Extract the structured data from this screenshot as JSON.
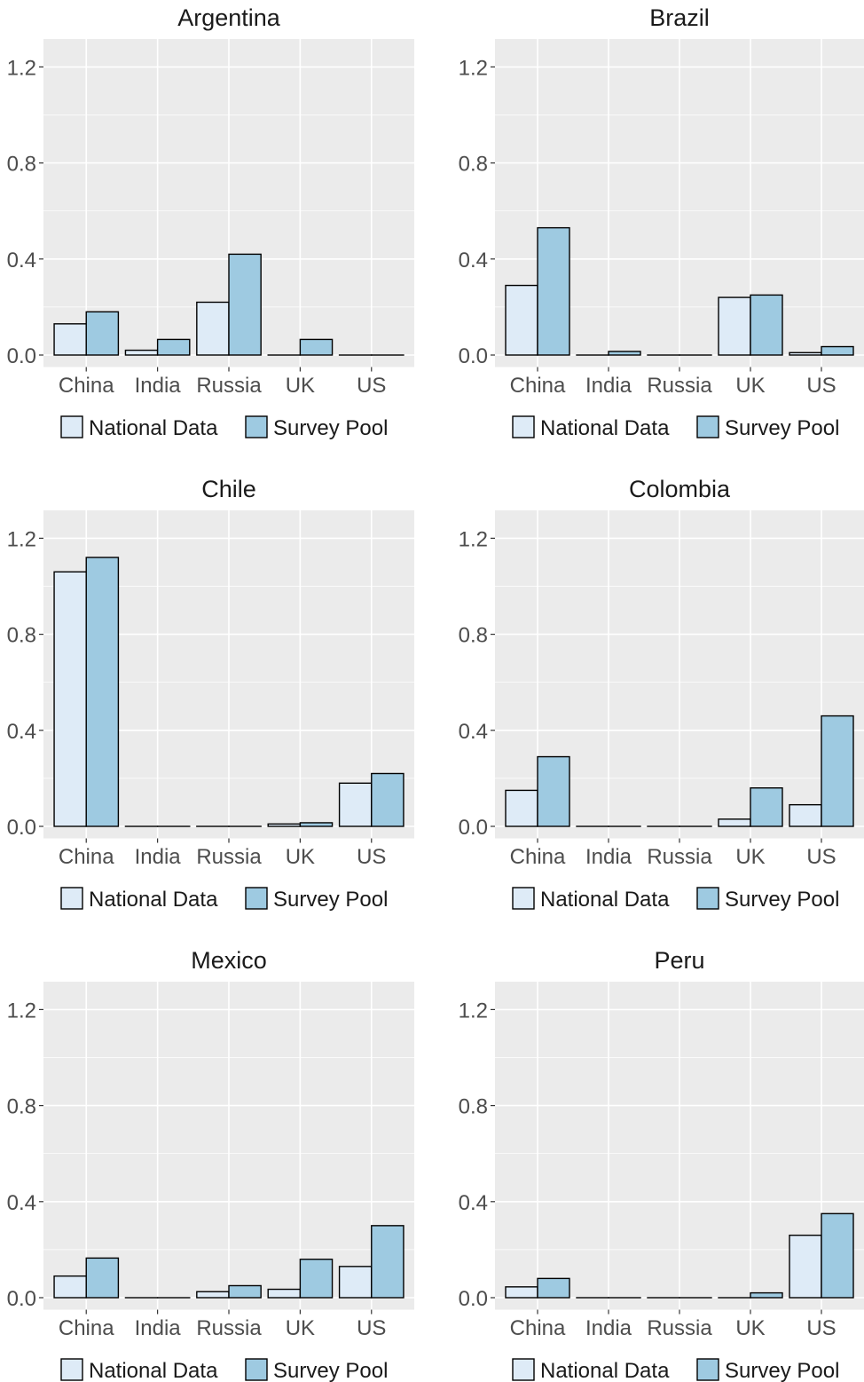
{
  "colors": {
    "panel_bg": "#EBEBEB",
    "grid": "#FFFFFF",
    "national": "#DEEBF7",
    "survey": "#9ECAE1",
    "bar_border": "#000000",
    "text": "#1A1A1A",
    "tick_text": "#4D4D4D"
  },
  "legend": [
    {
      "name": "National Data",
      "color": "#DEEBF7"
    },
    {
      "name": "Survey Pool",
      "color": "#9ECAE1"
    }
  ],
  "chart_data": [
    {
      "type": "bar",
      "title": "Argentina",
      "categories": [
        "China",
        "India",
        "Russia",
        "UK",
        "US"
      ],
      "series": [
        {
          "name": "National Data",
          "values": [
            0.13,
            0.02,
            0.22,
            0.0,
            0.0
          ]
        },
        {
          "name": "Survey Pool",
          "values": [
            0.18,
            0.065,
            0.42,
            0.065,
            0.0
          ]
        }
      ],
      "yticks": [
        "0.0",
        "0.4",
        "0.8",
        "1.2"
      ],
      "ylim": [
        0,
        1.3
      ],
      "grid": true,
      "legend_position": "bottom"
    },
    {
      "type": "bar",
      "title": "Brazil",
      "categories": [
        "China",
        "India",
        "Russia",
        "UK",
        "US"
      ],
      "series": [
        {
          "name": "National Data",
          "values": [
            0.29,
            0.0,
            0.0,
            0.24,
            0.01
          ]
        },
        {
          "name": "Survey Pool",
          "values": [
            0.53,
            0.015,
            0.0,
            0.25,
            0.035
          ]
        }
      ],
      "yticks": [
        "0.0",
        "0.4",
        "0.8",
        "1.2"
      ],
      "ylim": [
        0,
        1.3
      ],
      "grid": true,
      "legend_position": "bottom"
    },
    {
      "type": "bar",
      "title": "Chile",
      "categories": [
        "China",
        "India",
        "Russia",
        "UK",
        "US"
      ],
      "series": [
        {
          "name": "National Data",
          "values": [
            1.06,
            0.0,
            0.0,
            0.01,
            0.18
          ]
        },
        {
          "name": "Survey Pool",
          "values": [
            1.12,
            0.0,
            0.0,
            0.015,
            0.22
          ]
        }
      ],
      "yticks": [
        "0.0",
        "0.4",
        "0.8",
        "1.2"
      ],
      "ylim": [
        0,
        1.3
      ],
      "grid": true,
      "legend_position": "bottom"
    },
    {
      "type": "bar",
      "title": "Colombia",
      "categories": [
        "China",
        "India",
        "Russia",
        "UK",
        "US"
      ],
      "series": [
        {
          "name": "National Data",
          "values": [
            0.15,
            0.0,
            0.0,
            0.03,
            0.09
          ]
        },
        {
          "name": "Survey Pool",
          "values": [
            0.29,
            0.0,
            0.0,
            0.16,
            0.46
          ]
        }
      ],
      "yticks": [
        "0.0",
        "0.4",
        "0.8",
        "1.2"
      ],
      "ylim": [
        0,
        1.3
      ],
      "grid": true,
      "legend_position": "bottom"
    },
    {
      "type": "bar",
      "title": "Mexico",
      "categories": [
        "China",
        "India",
        "Russia",
        "UK",
        "US"
      ],
      "series": [
        {
          "name": "National Data",
          "values": [
            0.09,
            0.0,
            0.025,
            0.035,
            0.13
          ]
        },
        {
          "name": "Survey Pool",
          "values": [
            0.165,
            0.0,
            0.05,
            0.16,
            0.3
          ]
        }
      ],
      "yticks": [
        "0.0",
        "0.4",
        "0.8",
        "1.2"
      ],
      "ylim": [
        0,
        1.3
      ],
      "grid": true,
      "legend_position": "bottom"
    },
    {
      "type": "bar",
      "title": "Peru",
      "categories": [
        "China",
        "India",
        "Russia",
        "UK",
        "US"
      ],
      "series": [
        {
          "name": "National Data",
          "values": [
            0.045,
            0.0,
            0.0,
            0.0,
            0.26
          ]
        },
        {
          "name": "Survey Pool",
          "values": [
            0.08,
            0.0,
            0.0,
            0.02,
            0.35
          ]
        }
      ],
      "yticks": [
        "0.0",
        "0.4",
        "0.8",
        "1.2"
      ],
      "ylim": [
        0,
        1.3
      ],
      "grid": true,
      "legend_position": "bottom"
    }
  ]
}
